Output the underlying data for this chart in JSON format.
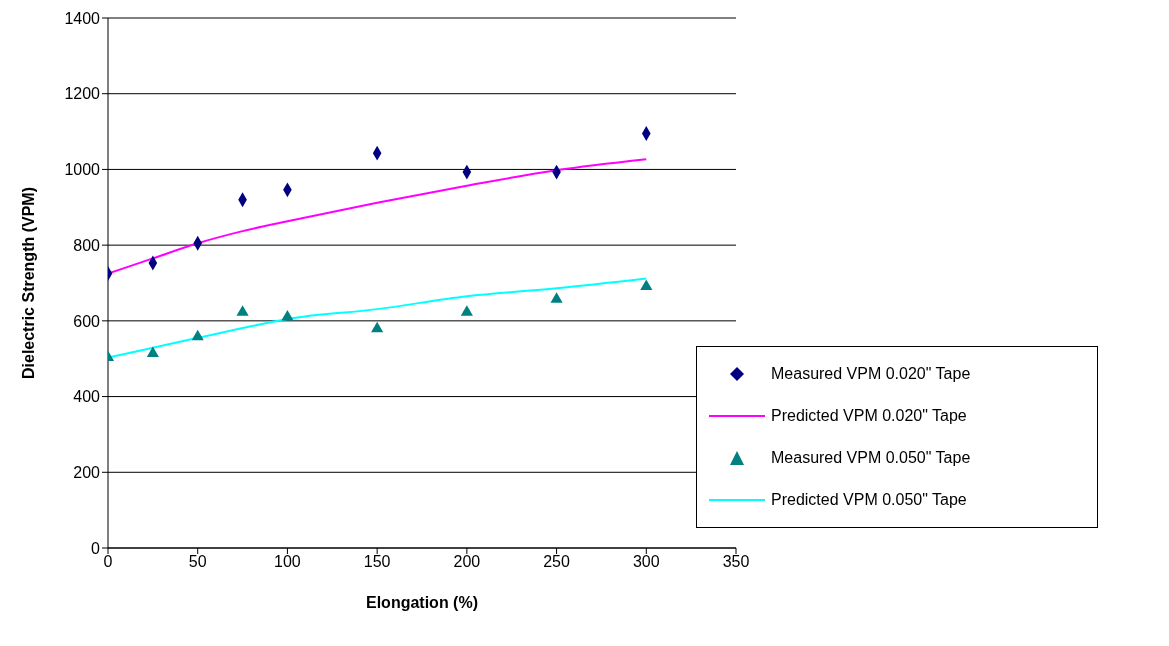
{
  "chart_data": {
    "type": "scatter",
    "xlabel": "Elongation (%)",
    "ylabel": "Dielectric Strength (VPM)",
    "xlim": [
      0,
      350
    ],
    "xticks": [
      0,
      50,
      100,
      150,
      200,
      250,
      300,
      350
    ],
    "ylim": [
      0,
      1400
    ],
    "yticks": [
      0,
      200,
      400,
      600,
      800,
      1000,
      1200,
      1400
    ],
    "grid": "y",
    "legend": "bottom right",
    "x": [
      0,
      25,
      50,
      75,
      100,
      150,
      200,
      250,
      300
    ],
    "series": [
      {
        "name": "Measured VPM 0.020\" Tape",
        "marker": "diamond",
        "color": "#000080",
        "values": [
          725,
          753,
          805,
          920,
          946,
          1043,
          993,
          993,
          1095
        ]
      },
      {
        "name": "Predicted VPM 0.020\" Tape",
        "type": "line",
        "marker": "none",
        "color": "#ff00ff",
        "values": [
          725,
          765,
          805,
          837,
          863,
          912,
          957,
          998,
          1027
        ]
      },
      {
        "name": "Measured VPM 0.050\" Tape",
        "marker": "triangle",
        "color": "#008080",
        "values": [
          503,
          514,
          558,
          623,
          610,
          579,
          623,
          657,
          691
        ]
      },
      {
        "name": "Predicted VPM 0.050\" Tape",
        "type": "line",
        "marker": "none",
        "color": "#00ffff",
        "values": [
          503,
          529,
          555,
          581,
          605,
          631,
          665,
          686,
          712
        ]
      }
    ]
  }
}
